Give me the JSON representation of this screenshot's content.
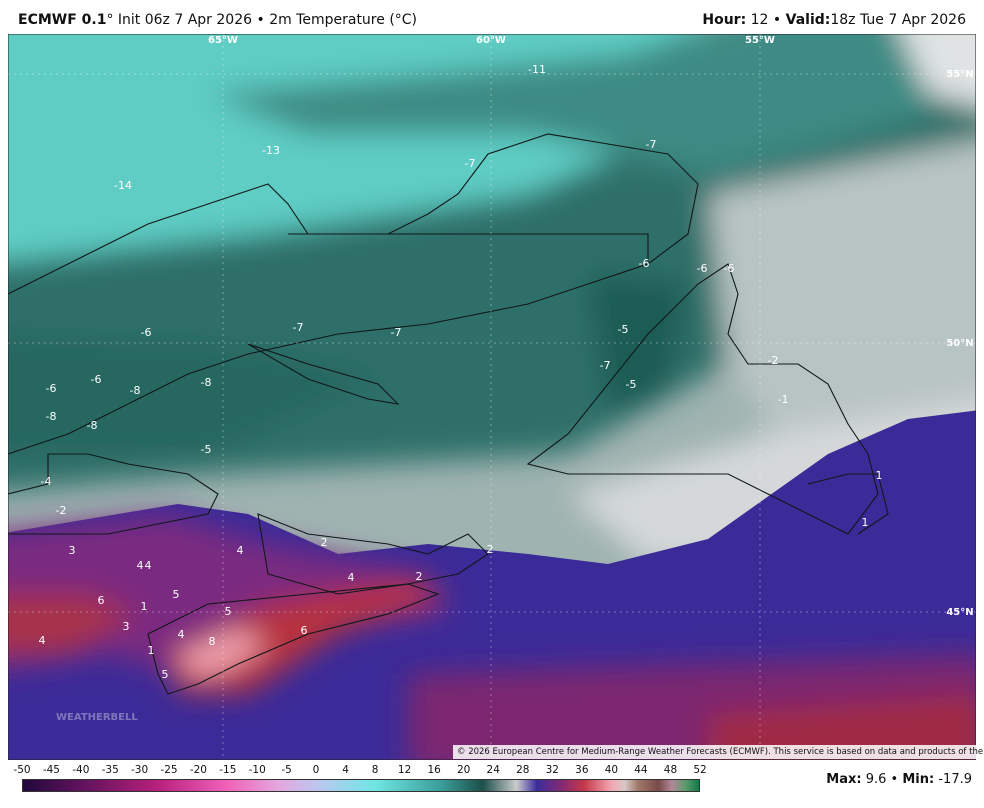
{
  "header": {
    "model": "ECMWF 0.1",
    "degree": "°",
    "init": "Init 06z 7 Apr 2026",
    "separator": "•",
    "field": "2m Temperature (°C)",
    "hour_label": "Hour:",
    "hour": 12,
    "valid_label": "Valid:",
    "valid": "18z Tue 7 Apr 2026"
  },
  "graticule": {
    "longitudes": [
      "65°W",
      "60°W",
      "55°W"
    ],
    "latitudes": [
      "55°N",
      "50°N",
      "45°N"
    ]
  },
  "labels": [
    -11,
    -7,
    -7,
    -13,
    -14,
    -6,
    -6,
    -6,
    -7,
    -7,
    -6,
    -5,
    -7,
    -5,
    -6,
    -6,
    -8,
    -8,
    -8,
    -8,
    -5,
    -2,
    -1,
    -4,
    -2,
    1,
    1,
    2,
    2,
    3,
    4,
    4,
    4,
    4,
    2,
    5,
    6,
    1,
    5,
    3,
    6,
    4,
    8,
    4,
    1,
    5
  ],
  "watermark": "WEATHERBELL",
  "copyright": "© 2026 European Centre for Medium-Range Weather Forecasts (ECMWF). This service is based on data and products of the ECMWF.",
  "colorbar": {
    "ticks": [
      -50,
      -45,
      -40,
      -35,
      -30,
      -25,
      -20,
      -15,
      -10,
      -5,
      0,
      4,
      8,
      12,
      16,
      20,
      24,
      28,
      32,
      36,
      40,
      44,
      48,
      52
    ]
  },
  "stats": {
    "max_label": "Max:",
    "max": 9.6,
    "min_label": "Min:",
    "min": -17.9
  }
}
